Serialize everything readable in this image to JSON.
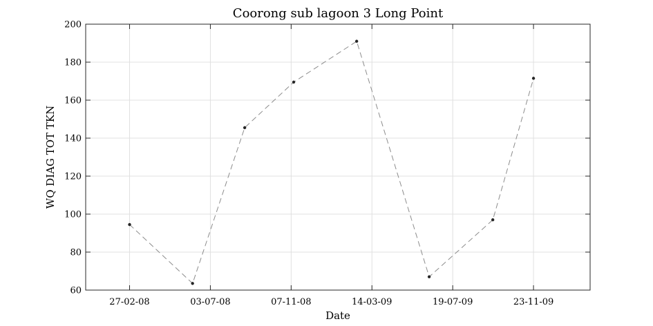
{
  "chart_data": {
    "type": "line",
    "title": "Coorong sub lagoon 3 Long Point",
    "xlabel": "Date",
    "ylabel": "WQ DIAG TOT TKN",
    "ylim": [
      60,
      200
    ],
    "yticks": [
      60,
      80,
      100,
      120,
      140,
      160,
      180,
      200
    ],
    "xlim": [
      "2007-12-20",
      "2010-02-20"
    ],
    "xticks": [
      {
        "date": "2008-02-27",
        "label": "27-02-08"
      },
      {
        "date": "2008-07-03",
        "label": "03-07-08"
      },
      {
        "date": "2008-11-07",
        "label": "07-11-08"
      },
      {
        "date": "2009-03-14",
        "label": "14-03-09"
      },
      {
        "date": "2009-07-19",
        "label": "19-07-09"
      },
      {
        "date": "2009-11-23",
        "label": "23-11-09"
      }
    ],
    "grid": true,
    "series": [
      {
        "color": "#8c8c8c",
        "marker_color": "#262626",
        "points": [
          {
            "x": "2008-02-27",
            "y": 94.5
          },
          {
            "x": "2008-06-05",
            "y": 63.5
          },
          {
            "x": "2008-08-26",
            "y": 145.5
          },
          {
            "x": "2008-11-11",
            "y": 169.5
          },
          {
            "x": "2009-02-18",
            "y": 191.0
          },
          {
            "x": "2009-06-12",
            "y": 67.0
          },
          {
            "x": "2009-09-20",
            "y": 97.0
          },
          {
            "x": "2009-11-23",
            "y": 171.5
          }
        ]
      }
    ]
  }
}
